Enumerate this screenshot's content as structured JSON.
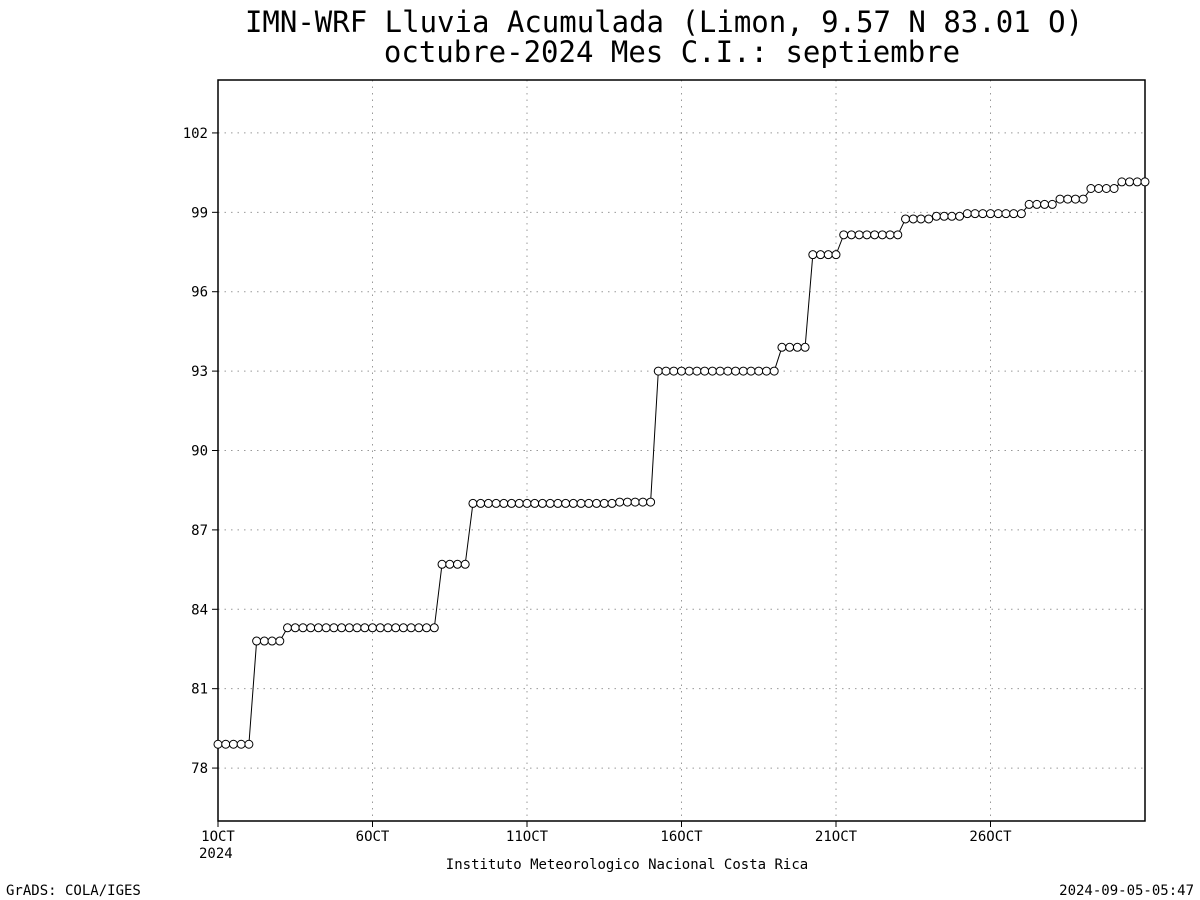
{
  "chart_data": {
    "type": "line",
    "title": "IMN-WRF  Lluvia Acumulada (Limon, 9.57  N 83.01  O)",
    "subtitle": "octubre-2024 Mes C.I.: septiembre",
    "x_label": "Instituto Meteorologico Nacional Costa Rica",
    "xtick_year": "2024",
    "footer_left": "GrADS: COLA/IGES",
    "footer_right": "2024-09-05-05:47",
    "grid": true,
    "color": "#000000",
    "x": [
      1,
      1.25,
      1.5,
      1.75,
      2,
      2.25,
      2.5,
      2.75,
      3,
      3.25,
      3.5,
      3.75,
      4,
      4.25,
      4.5,
      4.75,
      5,
      5.25,
      5.5,
      5.75,
      6,
      6.25,
      6.5,
      6.75,
      7,
      7.25,
      7.5,
      7.75,
      8,
      8.25,
      8.5,
      8.75,
      9,
      9.25,
      9.5,
      9.75,
      10,
      10.25,
      10.5,
      10.75,
      11,
      11.25,
      11.5,
      11.75,
      12,
      12.25,
      12.5,
      12.75,
      13,
      13.25,
      13.5,
      13.75,
      14,
      14.25,
      14.5,
      14.75,
      15,
      15.25,
      15.5,
      15.75,
      16,
      16.25,
      16.5,
      16.75,
      17,
      17.25,
      17.5,
      17.75,
      18,
      18.25,
      18.5,
      18.75,
      19,
      19.25,
      19.5,
      19.75,
      20,
      20.25,
      20.5,
      20.75,
      21,
      21.25,
      21.5,
      21.75,
      22,
      22.25,
      22.5,
      22.75,
      23,
      23.25,
      23.5,
      23.75,
      24,
      24.25,
      24.5,
      24.75,
      25,
      25.25,
      25.5,
      25.75,
      26,
      26.25,
      26.5,
      26.75,
      27,
      27.25,
      27.5,
      27.75,
      28,
      28.25,
      28.5,
      28.75,
      29,
      29.25,
      29.5,
      29.75,
      30,
      30.25,
      30.5,
      30.75,
      31
    ],
    "values": [
      78.9,
      78.9,
      78.9,
      78.9,
      78.9,
      82.8,
      82.8,
      82.8,
      82.8,
      83.3,
      83.3,
      83.3,
      83.3,
      83.3,
      83.3,
      83.3,
      83.3,
      83.3,
      83.3,
      83.3,
      83.3,
      83.3,
      83.3,
      83.3,
      83.3,
      83.3,
      83.3,
      83.3,
      83.3,
      85.7,
      85.7,
      85.7,
      85.7,
      88.0,
      88.0,
      88.0,
      88.0,
      88.0,
      88.0,
      88.0,
      88.0,
      88.0,
      88.0,
      88.0,
      88.0,
      88.0,
      88.0,
      88.0,
      88.0,
      88.0,
      88.0,
      88.0,
      88.05,
      88.05,
      88.05,
      88.05,
      88.05,
      93.0,
      93.0,
      93.0,
      93.0,
      93.0,
      93.0,
      93.0,
      93.0,
      93.0,
      93.0,
      93.0,
      93.0,
      93.0,
      93.0,
      93.0,
      93.0,
      93.9,
      93.9,
      93.9,
      93.9,
      97.4,
      97.4,
      97.4,
      97.4,
      98.15,
      98.15,
      98.15,
      98.15,
      98.15,
      98.15,
      98.15,
      98.15,
      98.75,
      98.75,
      98.75,
      98.75,
      98.85,
      98.85,
      98.85,
      98.85,
      98.95,
      98.95,
      98.95,
      98.95,
      98.95,
      98.95,
      98.95,
      98.95,
      99.3,
      99.3,
      99.3,
      99.3,
      99.5,
      99.5,
      99.5,
      99.5,
      99.9,
      99.9,
      99.9,
      99.9,
      100.15,
      100.15,
      100.15,
      100.15
    ],
    "xlim": [
      1,
      31
    ],
    "xticks": [
      {
        "value": 1,
        "label": "1OCT"
      },
      {
        "value": 6,
        "label": "6OCT"
      },
      {
        "value": 11,
        "label": "11OCT"
      },
      {
        "value": 16,
        "label": "16OCT"
      },
      {
        "value": 21,
        "label": "21OCT"
      },
      {
        "value": 26,
        "label": "26OCT"
      }
    ],
    "ylim": [
      76,
      104
    ],
    "yticks": [
      78,
      81,
      84,
      87,
      90,
      93,
      96,
      99,
      102
    ]
  }
}
